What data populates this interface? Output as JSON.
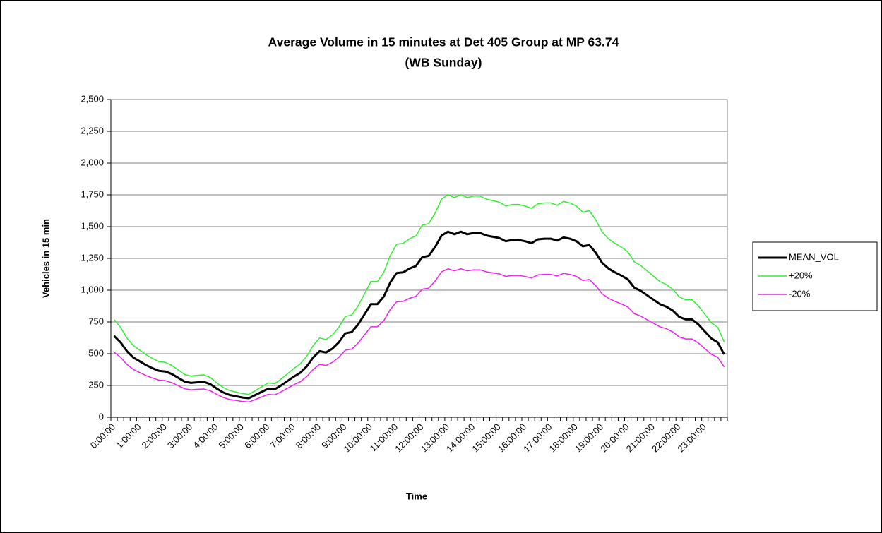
{
  "chart_data": {
    "type": "line",
    "title": "Average Volume in 15 minutes at Det 405 Group at MP 63.74",
    "subtitle": "(WB Sunday)",
    "x_label": "Time",
    "y_label": "Vehicles in 15 min",
    "categories": [
      "0:00:00",
      null,
      null,
      null,
      "1:00:00",
      null,
      null,
      null,
      "2:00:00",
      null,
      null,
      null,
      "3:00:00",
      null,
      null,
      null,
      "4:00:00",
      null,
      null,
      null,
      "5:00:00",
      null,
      null,
      null,
      "6:00:00",
      null,
      null,
      null,
      "7:00:00",
      null,
      null,
      null,
      "8:00:00",
      null,
      null,
      null,
      "9:00:00",
      null,
      null,
      null,
      "10:00:00",
      null,
      null,
      null,
      "11:00:00",
      null,
      null,
      null,
      "12:00:00",
      null,
      null,
      null,
      "13:00:00",
      null,
      null,
      null,
      "14:00:00",
      null,
      null,
      null,
      "15:00:00",
      null,
      null,
      null,
      "16:00:00",
      null,
      null,
      null,
      "17:00:00",
      null,
      null,
      null,
      "18:00:00",
      null,
      null,
      null,
      "19:00:00",
      null,
      null,
      null,
      "20:00:00",
      null,
      null,
      null,
      "21:00:00",
      null,
      null,
      null,
      "22:00:00",
      null,
      null,
      null,
      "23:00:00",
      null,
      null,
      null
    ],
    "series": [
      {
        "name": "MEAN_VOL",
        "color": "#000000",
        "values": [
          640,
          590,
          520,
          470,
          440,
          410,
          385,
          365,
          360,
          340,
          310,
          280,
          270,
          275,
          278,
          260,
          225,
          195,
          175,
          165,
          155,
          150,
          175,
          200,
          225,
          220,
          250,
          285,
          320,
          350,
          400,
          470,
          520,
          510,
          540,
          590,
          660,
          670,
          730,
          810,
          890,
          890,
          950,
          1060,
          1135,
          1140,
          1170,
          1190,
          1260,
          1270,
          1340,
          1430,
          1460,
          1440,
          1460,
          1440,
          1450,
          1450,
          1430,
          1420,
          1410,
          1385,
          1395,
          1395,
          1385,
          1370,
          1400,
          1405,
          1405,
          1390,
          1415,
          1405,
          1385,
          1345,
          1355,
          1295,
          1215,
          1170,
          1140,
          1115,
          1085,
          1020,
          995,
          960,
          925,
          890,
          870,
          840,
          790,
          770,
          770,
          730,
          675,
          620,
          590,
          495
        ]
      },
      {
        "name": "+20%",
        "color": "#33ee33",
        "values": [
          768,
          708,
          624,
          564,
          528,
          492,
          462,
          438,
          432,
          408,
          372,
          336,
          324,
          330,
          334,
          312,
          270,
          234,
          210,
          198,
          186,
          180,
          210,
          240,
          270,
          264,
          300,
          342,
          384,
          420,
          480,
          564,
          624,
          612,
          648,
          708,
          792,
          804,
          876,
          972,
          1068,
          1068,
          1140,
          1272,
          1362,
          1368,
          1404,
          1428,
          1512,
          1524,
          1608,
          1716,
          1752,
          1728,
          1752,
          1728,
          1740,
          1740,
          1716,
          1704,
          1692,
          1662,
          1674,
          1674,
          1662,
          1644,
          1680,
          1686,
          1686,
          1668,
          1698,
          1686,
          1662,
          1614,
          1626,
          1554,
          1458,
          1404,
          1368,
          1338,
          1302,
          1224,
          1194,
          1152,
          1110,
          1068,
          1044,
          1008,
          948,
          924,
          924,
          876,
          810,
          744,
          708,
          594
        ]
      },
      {
        "name": "-20%",
        "color": "#ee22ee",
        "values": [
          512,
          472,
          416,
          376,
          352,
          328,
          308,
          292,
          288,
          272,
          248,
          224,
          216,
          220,
          222,
          208,
          180,
          156,
          140,
          132,
          124,
          120,
          140,
          160,
          180,
          176,
          200,
          228,
          256,
          280,
          320,
          376,
          416,
          408,
          432,
          472,
          528,
          536,
          584,
          648,
          712,
          712,
          760,
          848,
          908,
          912,
          936,
          952,
          1008,
          1016,
          1072,
          1144,
          1168,
          1152,
          1168,
          1152,
          1160,
          1160,
          1144,
          1136,
          1128,
          1108,
          1116,
          1116,
          1108,
          1096,
          1120,
          1124,
          1124,
          1112,
          1132,
          1124,
          1108,
          1076,
          1084,
          1036,
          972,
          936,
          912,
          892,
          868,
          816,
          796,
          768,
          740,
          712,
          696,
          672,
          632,
          616,
          616,
          584,
          540,
          496,
          472,
          396
        ]
      }
    ],
    "ylim": [
      0,
      2500
    ],
    "yticks": [
      0,
      250,
      500,
      750,
      {
        "value": 1000,
        "label": "1,000"
      },
      {
        "value": 1250,
        "label": "1,250"
      },
      {
        "value": 1500,
        "label": "1,500"
      },
      {
        "value": 1750,
        "label": "1,750"
      },
      {
        "value": 2000,
        "label": "2,000"
      },
      {
        "value": 2250,
        "label": "2,250"
      },
      {
        "value": 2500,
        "label": "2,500"
      }
    ],
    "grid": true,
    "legend": "right"
  }
}
